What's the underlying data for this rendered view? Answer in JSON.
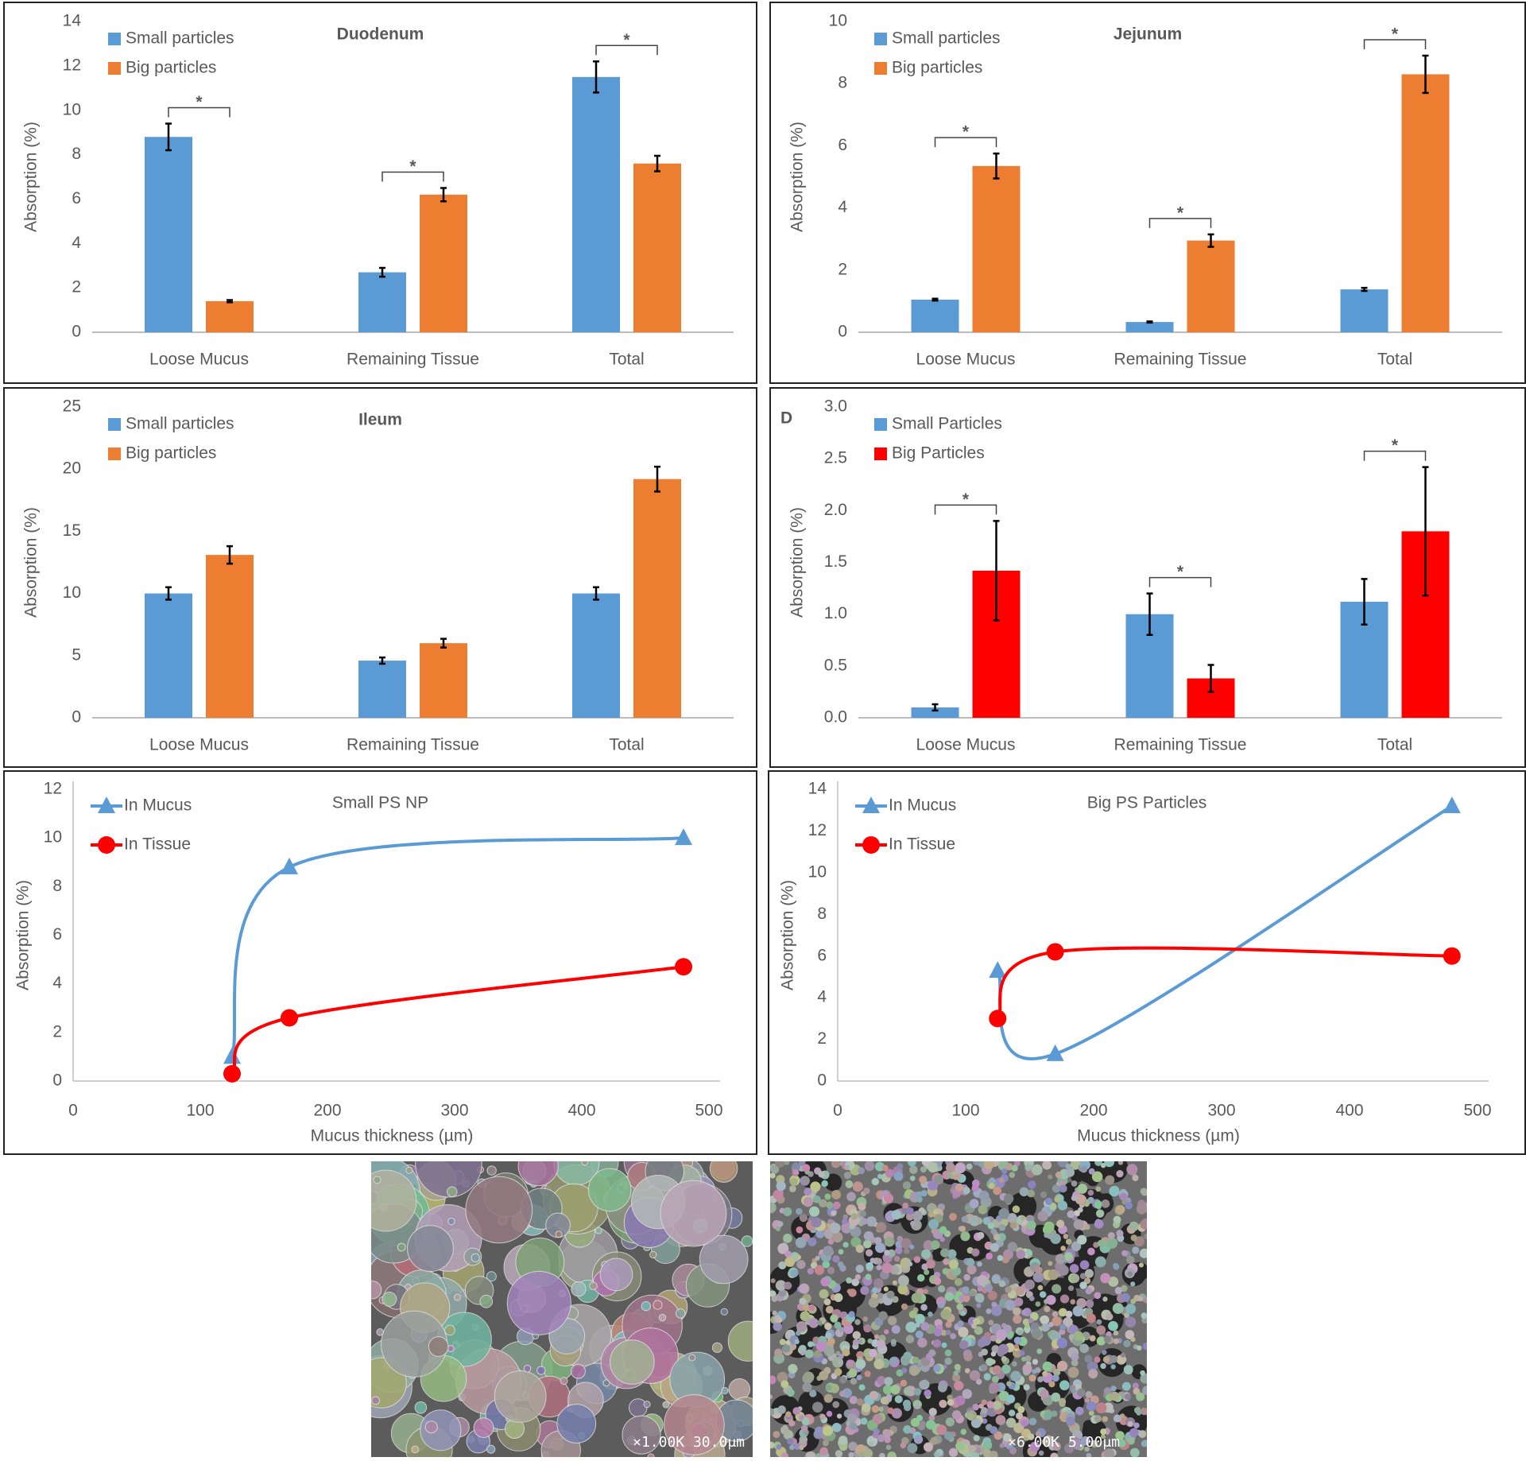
{
  "chart_data": [
    {
      "type": "bar",
      "title": "Duodenum",
      "y_label": "Absorption (%)",
      "legend": "top-left",
      "categories": [
        "Loose Mucus",
        "Remaining Tissue",
        "Total"
      ],
      "series": [
        {
          "name": "Small particles",
          "color": "#5b9bd5",
          "values": [
            8.8,
            2.7,
            11.5
          ],
          "errors": [
            0.6,
            0.2,
            0.7
          ]
        },
        {
          "name": "Big particles",
          "color": "#ed7d31",
          "values": [
            1.4,
            6.2,
            7.6
          ],
          "errors": [
            0.05,
            0.3,
            0.35
          ]
        }
      ],
      "significance": [
        "*",
        "*",
        "*"
      ],
      "ylim": [
        0,
        14
      ],
      "yticks": [
        0,
        2,
        4,
        6,
        8,
        10,
        12,
        14
      ]
    },
    {
      "type": "bar",
      "title": "Jejunum",
      "y_label": "Absorption (%)",
      "legend": "top-left",
      "categories": [
        "Loose Mucus",
        "Remaining Tissue",
        "Total"
      ],
      "series": [
        {
          "name": "Small particles",
          "color": "#5b9bd5",
          "values": [
            1.05,
            0.33,
            1.38
          ],
          "errors": [
            0.03,
            0.02,
            0.05
          ]
        },
        {
          "name": "Big particles",
          "color": "#ed7d31",
          "values": [
            5.35,
            2.95,
            8.3
          ],
          "errors": [
            0.4,
            0.2,
            0.6
          ]
        }
      ],
      "significance": [
        "*",
        "*",
        "*"
      ],
      "ylim": [
        0,
        10
      ],
      "yticks": [
        0,
        2,
        4,
        6,
        8,
        10
      ]
    },
    {
      "type": "bar",
      "title": "Ileum",
      "y_label": "Absorption (%)",
      "legend": "top-left",
      "categories": [
        "Loose Mucus",
        "Remaining Tissue",
        "Total"
      ],
      "series": [
        {
          "name": "Small particles",
          "color": "#5b9bd5",
          "values": [
            10.0,
            4.6,
            10.0
          ],
          "errors": [
            0.5,
            0.25,
            0.5
          ]
        },
        {
          "name": "Big particles",
          "color": "#ed7d31",
          "values": [
            13.1,
            6.0,
            19.2
          ],
          "errors": [
            0.7,
            0.35,
            1.0
          ]
        }
      ],
      "ylim": [
        0,
        25
      ],
      "yticks": [
        0,
        5,
        10,
        15,
        20,
        25
      ]
    },
    {
      "type": "bar",
      "panel_label": "D",
      "y_label": "Absorption (%)",
      "legend": "top-left",
      "categories": [
        "Loose Mucus",
        "Remaining Tissue",
        "Total"
      ],
      "series": [
        {
          "name": "Small Particles",
          "color": "#5b9bd5",
          "values": [
            0.1,
            1.0,
            1.12
          ],
          "errors": [
            0.03,
            0.2,
            0.22
          ]
        },
        {
          "name": "Big Particles",
          "color": "#ff0000",
          "values": [
            1.42,
            0.38,
            1.8
          ],
          "errors": [
            0.48,
            0.13,
            0.62
          ]
        }
      ],
      "significance": [
        "*",
        "*",
        "*"
      ],
      "ylim": [
        0,
        3
      ],
      "yticks": [
        {
          "value": 0,
          "label": "0.0"
        },
        {
          "value": 0.5,
          "label": "0.5"
        },
        {
          "value": 1,
          "label": "1.0"
        },
        {
          "value": 1.5,
          "label": "1.5"
        },
        {
          "value": 2,
          "label": "2.0"
        },
        {
          "value": 2.5,
          "label": "2.5"
        },
        {
          "value": 3,
          "label": "3.0"
        }
      ]
    },
    {
      "type": "line",
      "title": "Small PS NP",
      "x_label": "Mucus thickness (µm)",
      "y_label": "Absorption (%)",
      "legend": "top-left",
      "smooth": true,
      "series": [
        {
          "name": "In Mucus",
          "color": "#5b9bd5",
          "marker": "triangle",
          "x": [
            125,
            170,
            480
          ],
          "values": [
            1.0,
            8.8,
            10.0
          ]
        },
        {
          "name": "In Tissue",
          "color": "#ff0000",
          "marker": "circle",
          "x": [
            125,
            170,
            480
          ],
          "values": [
            0.3,
            2.6,
            4.7
          ]
        }
      ],
      "xlim": [
        0,
        500
      ],
      "xticks": [
        0,
        100,
        200,
        300,
        400,
        500
      ],
      "ylim": [
        0,
        12
      ],
      "yticks": [
        0,
        2,
        4,
        6,
        8,
        10,
        12
      ]
    },
    {
      "type": "line",
      "title": "Big PS Particles",
      "x_label": "Mucus thickness (µm)",
      "y_label": "Absorption (%)",
      "legend": "top-left",
      "smooth": true,
      "series": [
        {
          "name": "In Mucus",
          "color": "#5b9bd5",
          "marker": "triangle",
          "x": [
            125,
            170,
            480
          ],
          "values": [
            5.3,
            1.3,
            13.2
          ]
        },
        {
          "name": "In Tissue",
          "color": "#ff0000",
          "marker": "circle",
          "x": [
            125,
            170,
            480
          ],
          "values": [
            3.0,
            6.2,
            6.0
          ]
        }
      ],
      "xlim": [
        0,
        500
      ],
      "xticks": [
        0,
        100,
        200,
        300,
        400,
        500
      ],
      "ylim": [
        0,
        14
      ],
      "yticks": [
        0,
        2,
        4,
        6,
        8,
        10,
        12,
        14
      ]
    }
  ],
  "micrographs": [
    {
      "caption": "×1.00K 30.0μm"
    },
    {
      "caption": "×6.00K 5.00μm"
    }
  ]
}
